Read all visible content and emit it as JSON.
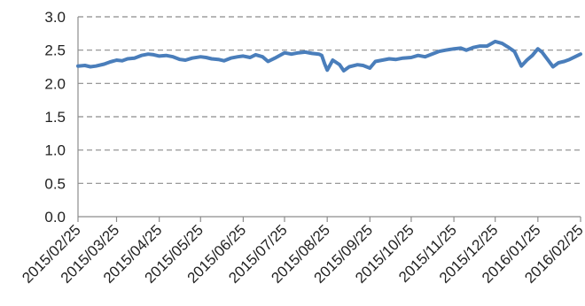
{
  "chart_data": {
    "type": "line",
    "title": "",
    "xlabel": "",
    "ylabel": "",
    "ylim": [
      0,
      3.0
    ],
    "yticks": [
      "0.0",
      "0.5",
      "1.0",
      "1.5",
      "2.0",
      "2.5",
      "3.0"
    ],
    "xticks": [
      "2015/02/25",
      "2015/03/25",
      "2015/04/25",
      "2015/05/25",
      "2015/06/25",
      "2015/07/25",
      "2015/08/25",
      "2015/09/25",
      "2015/10/25",
      "2015/11/25",
      "2015/12/25",
      "2016/01/25",
      "2016/02/25"
    ],
    "grid": true,
    "legend": "none",
    "colors": {
      "line": "#4a7ebb",
      "grid": "#8c8c8c",
      "text": "#222222"
    },
    "series": [
      {
        "x": [
          "2015/02/25",
          "2015/03/02",
          "2015/03/06",
          "2015/03/10",
          "2015/03/16",
          "2015/03/20",
          "2015/03/25",
          "2015/03/29",
          "2015/04/02",
          "2015/04/07",
          "2015/04/12",
          "2015/04/17",
          "2015/04/21",
          "2015/04/25",
          "2015/04/30",
          "2015/05/05",
          "2015/05/10",
          "2015/05/14",
          "2015/05/19",
          "2015/05/25",
          "2015/05/29",
          "2015/06/02",
          "2015/06/07",
          "2015/06/11",
          "2015/06/16",
          "2015/06/21",
          "2015/06/25",
          "2015/06/30",
          "2015/07/04",
          "2015/07/09",
          "2015/07/13",
          "2015/07/18",
          "2015/07/25",
          "2015/07/30",
          "2015/08/04",
          "2015/08/09",
          "2015/08/14",
          "2015/08/19",
          "2015/08/21",
          "2015/08/23",
          "2015/08/25",
          "2015/08/29",
          "2015/09/03",
          "2015/09/06",
          "2015/09/10",
          "2015/09/16",
          "2015/09/20",
          "2015/09/25",
          "2015/09/29",
          "2015/10/04",
          "2015/10/09",
          "2015/10/14",
          "2015/10/19",
          "2015/10/25",
          "2015/10/30",
          "2015/11/04",
          "2015/11/09",
          "2015/11/14",
          "2015/11/19",
          "2015/11/25",
          "2015/11/30",
          "2015/12/04",
          "2015/12/09",
          "2015/12/14",
          "2015/12/19",
          "2015/12/25",
          "2015/12/30",
          "2016/01/03",
          "2016/01/08",
          "2016/01/13",
          "2016/01/17",
          "2016/01/21",
          "2016/01/25",
          "2016/01/28",
          "2016/02/01",
          "2016/02/05",
          "2016/02/09",
          "2016/02/13",
          "2016/02/17",
          "2016/02/21",
          "2016/02/25"
        ],
        "values": [
          2.26,
          2.27,
          2.25,
          2.26,
          2.29,
          2.32,
          2.35,
          2.34,
          2.37,
          2.38,
          2.42,
          2.44,
          2.43,
          2.41,
          2.42,
          2.4,
          2.36,
          2.35,
          2.38,
          2.4,
          2.39,
          2.37,
          2.36,
          2.34,
          2.38,
          2.4,
          2.41,
          2.39,
          2.43,
          2.4,
          2.33,
          2.38,
          2.46,
          2.44,
          2.46,
          2.47,
          2.45,
          2.44,
          2.42,
          2.3,
          2.2,
          2.35,
          2.28,
          2.19,
          2.25,
          2.28,
          2.27,
          2.23,
          2.33,
          2.35,
          2.37,
          2.36,
          2.38,
          2.39,
          2.42,
          2.4,
          2.44,
          2.48,
          2.5,
          2.52,
          2.53,
          2.5,
          2.54,
          2.56,
          2.56,
          2.63,
          2.6,
          2.55,
          2.48,
          2.26,
          2.35,
          2.42,
          2.52,
          2.47,
          2.36,
          2.25,
          2.31,
          2.33,
          2.36,
          2.4,
          2.44
        ]
      }
    ]
  }
}
